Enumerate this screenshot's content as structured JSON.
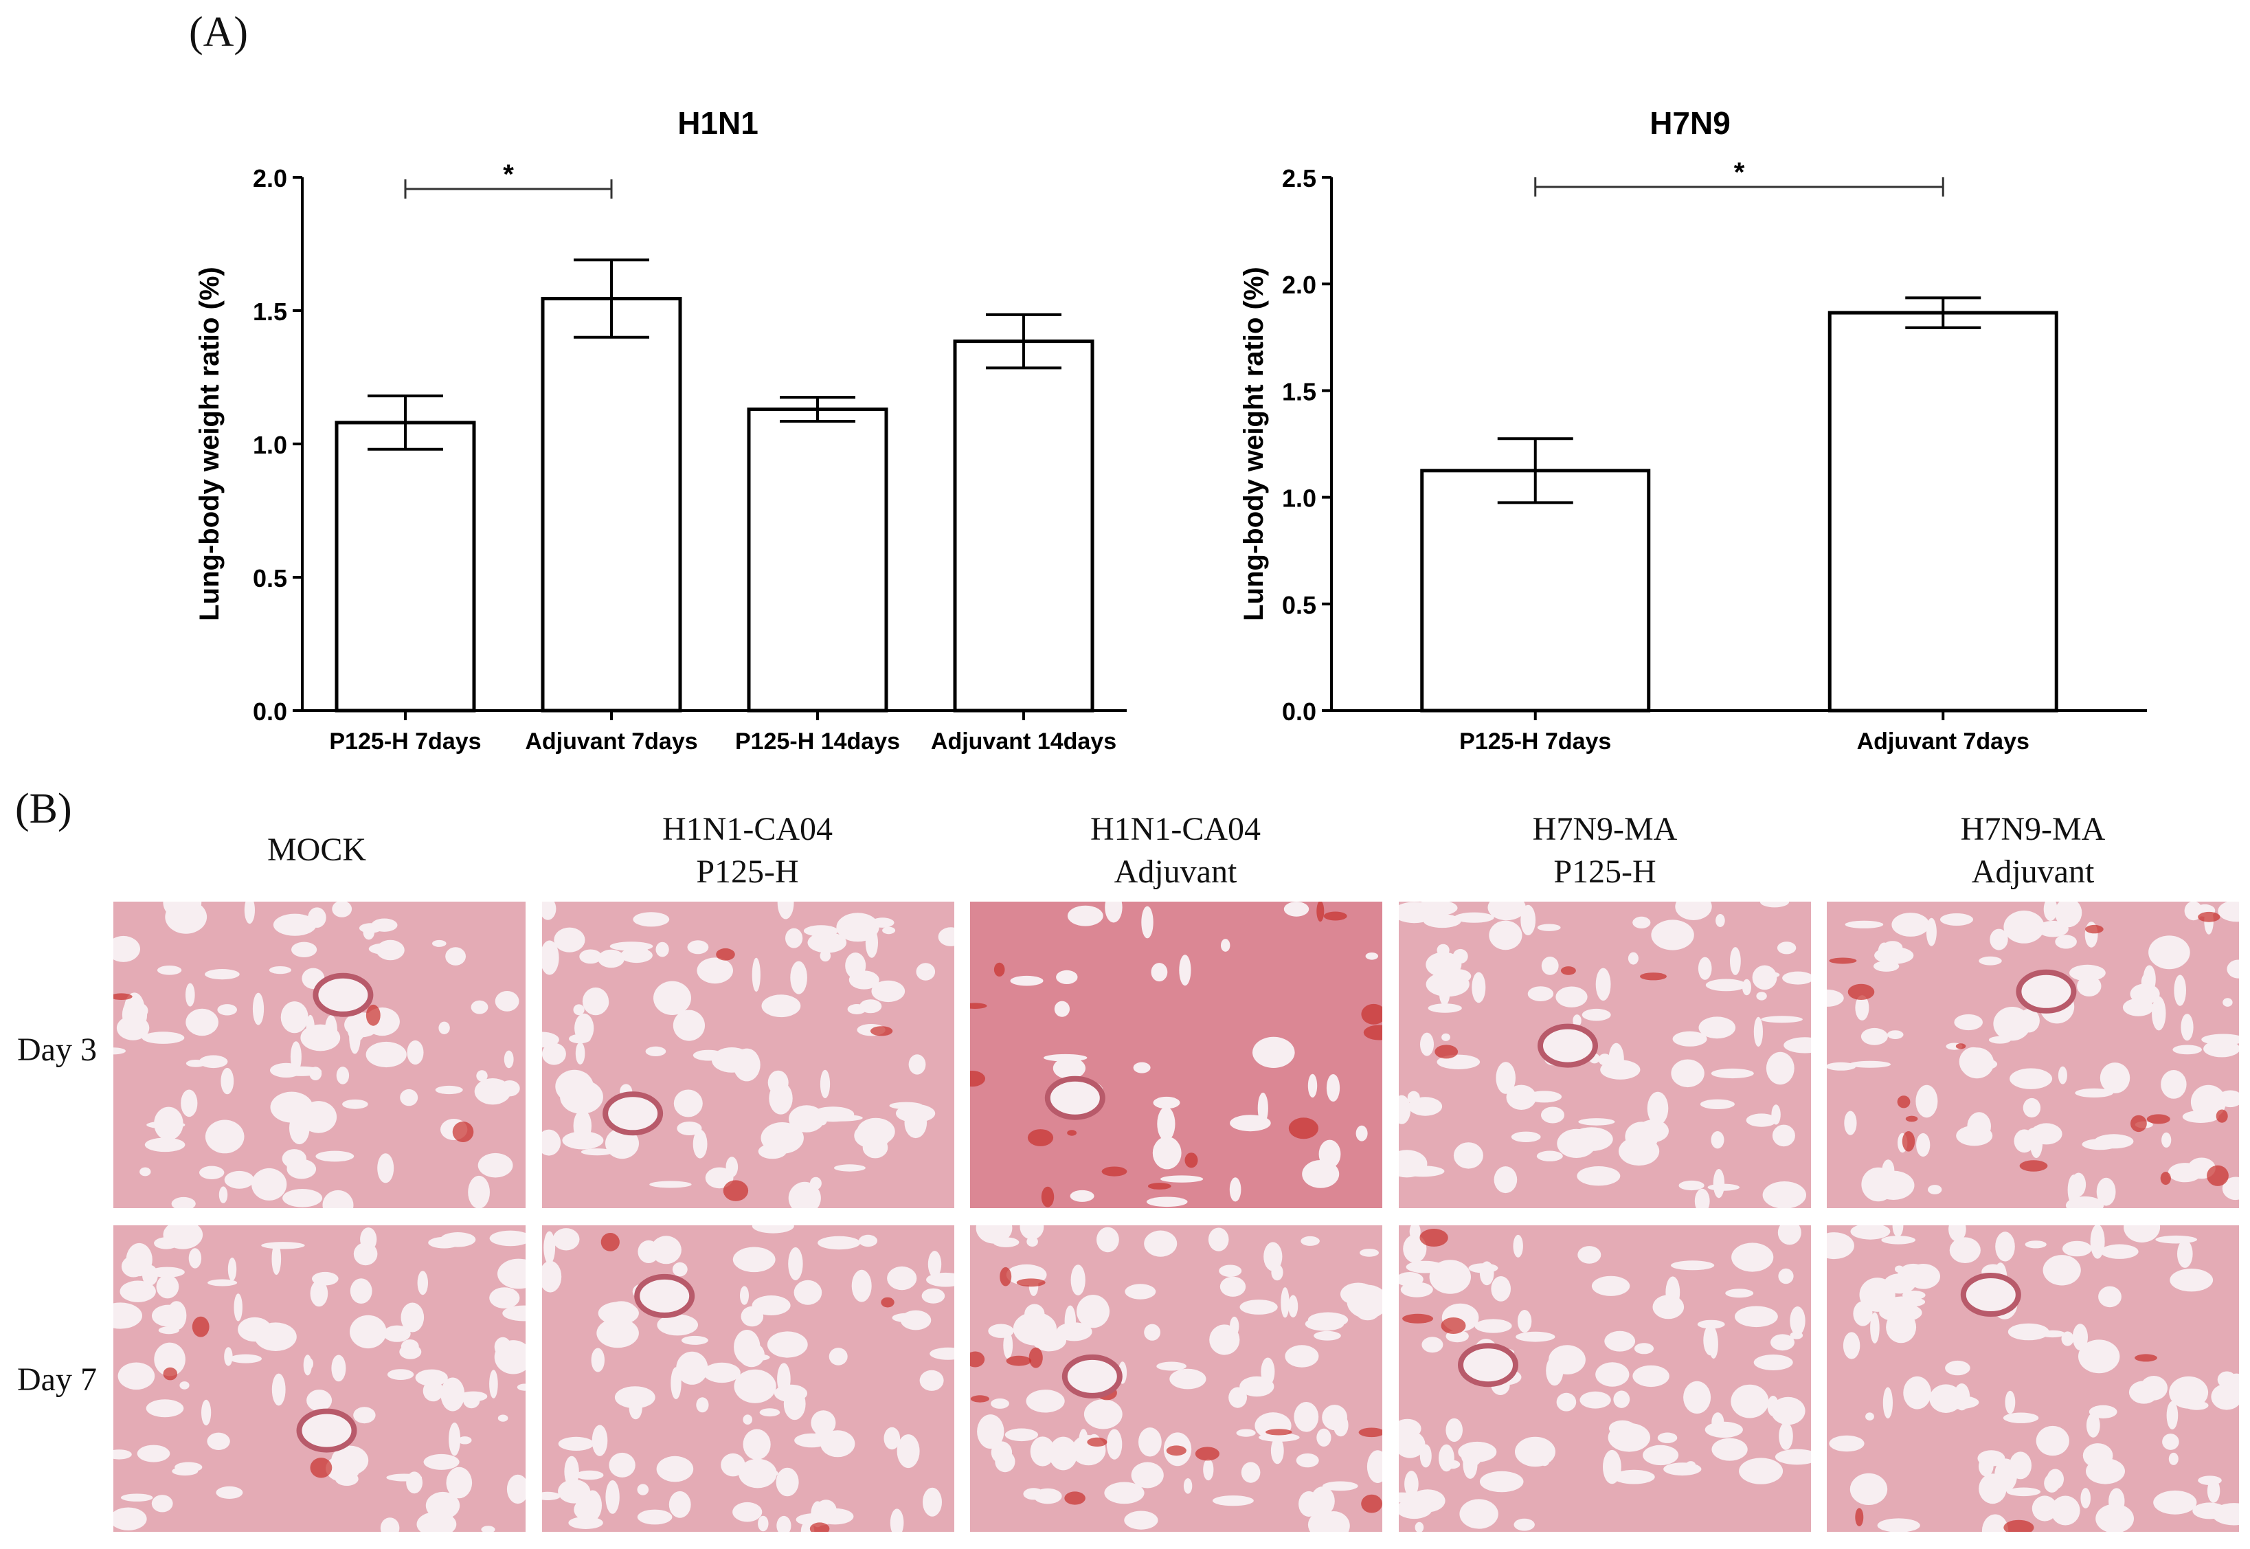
{
  "panel_a_label": "(A)",
  "panel_b_label": "(B)",
  "chart_data": [
    {
      "type": "bar",
      "title": "H1N1",
      "ylabel": "Lung-body weight ratio (%)",
      "xlabel": "",
      "categories": [
        "P125-H  7days",
        "Adjuvant  7days",
        "P125-H  14days",
        "Adjuvant  14days"
      ],
      "values": [
        1.08,
        1.545,
        1.13,
        1.385
      ],
      "errors": [
        0.1,
        0.145,
        0.045,
        0.1
      ],
      "ylim": [
        0,
        2.0
      ],
      "yticks": [
        "0.0",
        "0.5",
        "1.0",
        "1.5",
        "2.0"
      ],
      "significance": {
        "from": 0,
        "to": 1,
        "label": "*"
      },
      "grid": false,
      "bar_fill": "#ffffff",
      "bar_stroke": "#000000"
    },
    {
      "type": "bar",
      "title": "H7N9",
      "ylabel": "Lung-body weight ratio (%)",
      "xlabel": "",
      "categories": [
        "P125-H  7days",
        "Adjuvant  7days"
      ],
      "values": [
        1.125,
        1.865
      ],
      "errors": [
        0.15,
        0.07
      ],
      "ylim": [
        0,
        2.5
      ],
      "yticks": [
        "0.0",
        "0.5",
        "1.0",
        "1.5",
        "2.0",
        "2.5"
      ],
      "significance": {
        "from": 0,
        "to": 1,
        "label": "*"
      },
      "grid": false,
      "bar_fill": "#ffffff",
      "bar_stroke": "#000000"
    }
  ],
  "histology": {
    "columns": [
      {
        "line1": "MOCK",
        "line2": ""
      },
      {
        "line1": "H1N1-CA04",
        "line2": "P125-H"
      },
      {
        "line1": "H1N1-CA04",
        "line2": "Adjuvant"
      },
      {
        "line1": "H7N9-MA",
        "line2": "P125-H"
      },
      {
        "line1": "H7N9-MA",
        "line2": "Adjuvant"
      }
    ],
    "rows": [
      "Day 3",
      "Day 7"
    ],
    "tissue_background": "#f2dde3",
    "tissue_color": "#d9828f",
    "hemorrhage_color": "#c8302c"
  }
}
